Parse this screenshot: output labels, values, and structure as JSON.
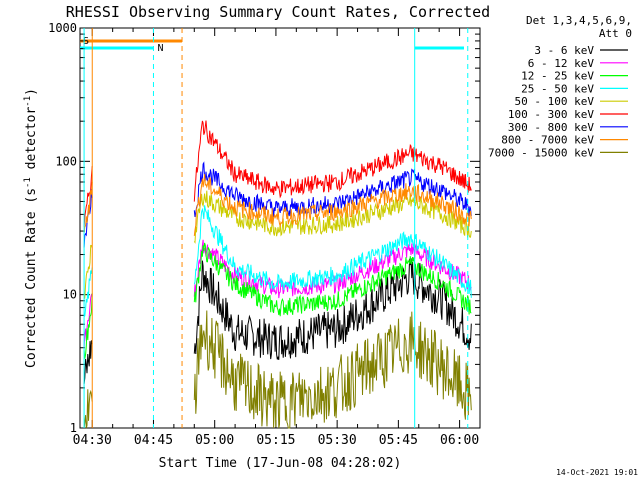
{
  "chart_data": {
    "type": "line",
    "title": "RHESSI Observing Summary Count Rates, Corrected",
    "xlabel": "Start Time (17-Jun-08 04:28:02)",
    "ylabel": "Corrected Count Rate (s⁻¹ detector⁻¹)",
    "ylabel_main": "Corrected Count Rate (s",
    "ylabel_sup1": "-1",
    "ylabel_mid": " detector",
    "ylabel_sup2": "-1",
    "ylabel_end": ")",
    "yscale": "log",
    "ylim": [
      1,
      1000
    ],
    "xlim": [
      "04:27",
      "06:05"
    ],
    "y_ticks": [
      "1",
      "10",
      "100",
      "1000"
    ],
    "x_ticks": [
      "04:30",
      "04:45",
      "05:00",
      "05:15",
      "05:30",
      "05:45",
      "06:00"
    ],
    "legend_header": [
      "Det 1,3,4,5,6,9,",
      "Att 0"
    ],
    "legend_position": "right",
    "series": [
      {
        "name": "3 - 6 keV",
        "color": "#000000",
        "gap": [
          4.5,
          2.2
        ],
        "rest": [
          15,
          5.2,
          4.5,
          5.5,
          14,
          9,
          4.8
        ]
      },
      {
        "name": "6 - 12 keV",
        "color": "#ff00ff",
        "gap": [
          11,
          4
        ],
        "rest": [
          24,
          14,
          11,
          12,
          22,
          16,
          12
        ]
      },
      {
        "name": "12 - 25 keV",
        "color": "#00ff00",
        "gap": [
          9,
          3.5
        ],
        "rest": [
          22,
          12,
          8,
          9,
          17,
          12,
          8
        ]
      },
      {
        "name": "25 - 50 keV",
        "color": "#00ffff",
        "gap": [
          17,
          6
        ],
        "rest": [
          45,
          16,
          12,
          14,
          27,
          17,
          11
        ]
      },
      {
        "name": "50 - 100 keV",
        "color": "#cccc00",
        "gap": [
          26,
          9
        ],
        "rest": [
          55,
          38,
          32,
          34,
          50,
          40,
          30
        ]
      },
      {
        "name": "100 - 300 keV",
        "color": "#ff0000",
        "gap": [
          85,
          32
        ],
        "rest": [
          190,
          80,
          62,
          70,
          115,
          90,
          64
        ]
      },
      {
        "name": "300 - 800 keV",
        "color": "#0000ff",
        "gap": [
          60,
          24
        ],
        "rest": [
          88,
          55,
          44,
          48,
          75,
          60,
          44
        ]
      },
      {
        "name": "800 - 7000 keV",
        "color": "#ff8800",
        "gap": [
          63,
          28
        ],
        "rest": [
          72,
          45,
          38,
          42,
          60,
          48,
          36
        ]
      },
      {
        "name": "7000 - 15000 keV",
        "color": "#808000",
        "gap": [
          1.5,
          1.1
        ],
        "rest": [
          5.5,
          2.2,
          1.5,
          2.0,
          4.5,
          2.8,
          1.6
        ]
      }
    ],
    "flag_labels": {
      "saa": "S",
      "night": "N"
    }
  },
  "footer": {
    "timestamp": "14-Oct-2021 19:01"
  }
}
